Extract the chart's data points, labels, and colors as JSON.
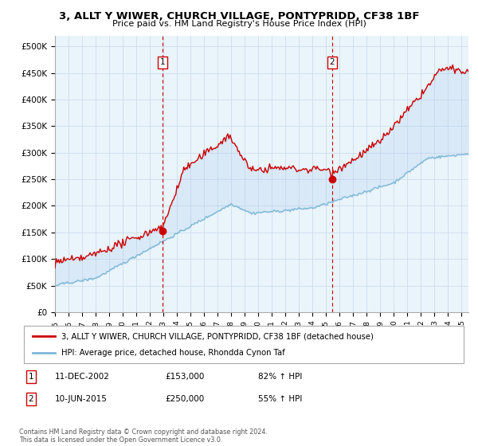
{
  "title": "3, ALLT Y WIWER, CHURCH VILLAGE, PONTYPRIDD, CF38 1BF",
  "subtitle": "Price paid vs. HM Land Registry's House Price Index (HPI)",
  "ylabel_ticks": [
    "£0",
    "£50K",
    "£100K",
    "£150K",
    "£200K",
    "£250K",
    "£300K",
    "£350K",
    "£400K",
    "£450K",
    "£500K"
  ],
  "ytick_values": [
    0,
    50000,
    100000,
    150000,
    200000,
    250000,
    300000,
    350000,
    400000,
    450000,
    500000
  ],
  "ylim": [
    0,
    520000
  ],
  "xlim_start": 1995.0,
  "xlim_end": 2025.5,
  "sale1_date": 2002.95,
  "sale1_price": 153000,
  "sale2_date": 2015.45,
  "sale2_price": 250000,
  "hpi_color": "#7db8d8",
  "price_color": "#cc0000",
  "vline_color": "#cc0000",
  "fill_color": "#deeaf5",
  "plot_bg_color": "#eaf4fb",
  "legend_label_red": "3, ALLT Y WIWER, CHURCH VILLAGE, PONTYPRIDD, CF38 1BF (detached house)",
  "legend_label_blue": "HPI: Average price, detached house, Rhondda Cynon Taf",
  "annotation1_label": "1",
  "annotation1_date": "11-DEC-2002",
  "annotation1_price": "£153,000",
  "annotation1_hpi": "82% ↑ HPI",
  "annotation2_label": "2",
  "annotation2_date": "10-JUN-2015",
  "annotation2_price": "£250,000",
  "annotation2_hpi": "55% ↑ HPI",
  "footer": "Contains HM Land Registry data © Crown copyright and database right 2024.\nThis data is licensed under the Open Government Licence v3.0.",
  "background_color": "#ffffff",
  "grid_color": "#ccddee"
}
